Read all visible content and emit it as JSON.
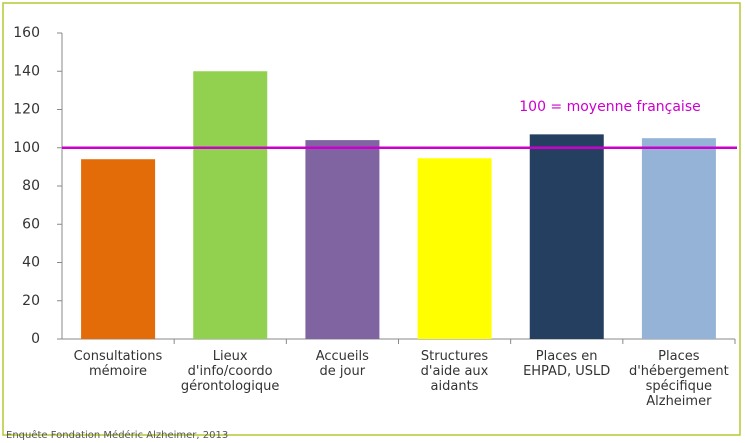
{
  "chart_data": {
    "type": "bar",
    "categories": [
      "Consultations\nmémoire",
      "Lieux\nd'info/coordo\ngérontologique",
      "Accueils\nde jour",
      "Structures\nd'aide aux\naidants",
      "Places en\nEHPAD, USLD",
      "Places\nd'hébergement\nspécifique\nAlzheimer"
    ],
    "values": [
      94,
      140,
      104,
      94.5,
      107,
      105
    ],
    "colors": [
      "#e36c09",
      "#92d050",
      "#8064a2",
      "#ffff00",
      "#243f60",
      "#95b3d7"
    ],
    "ylim": [
      0,
      160
    ],
    "yticks": [
      0,
      20,
      40,
      60,
      80,
      100,
      120,
      140,
      160
    ],
    "reference": {
      "value": 100,
      "label": "100 = moyenne française",
      "color": "#cc00cc"
    },
    "source": "Enquête Fondation Médéric Alzheimer, 2013"
  }
}
